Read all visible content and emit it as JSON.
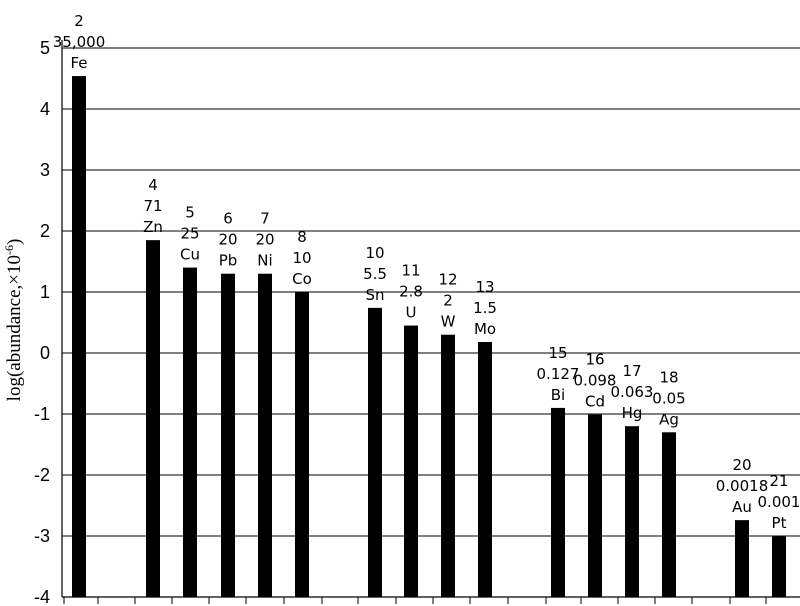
{
  "chart_data": {
    "type": "bar",
    "ylabel": "log(abundance,×10",
    "ylabel_exp": "-6",
    "ylabel_close": ")",
    "ylim": [
      -4,
      5
    ],
    "yticks": [
      "5",
      "4",
      "3",
      "2",
      "1",
      "0",
      "-1",
      "-2",
      "-3",
      "-4"
    ],
    "grid": true,
    "bars": [
      {
        "symbol": "Fe",
        "rank": "2",
        "abundance": "35,000",
        "value": 4.54
      },
      {
        "symbol": "Zn",
        "rank": "4",
        "abundance": "71",
        "value": 1.85
      },
      {
        "symbol": "Cu",
        "rank": "5",
        "abundance": "25",
        "value": 1.4
      },
      {
        "symbol": "Pb",
        "rank": "6",
        "abundance": "20",
        "value": 1.3
      },
      {
        "symbol": "Ni",
        "rank": "7",
        "abundance": "20",
        "value": 1.3
      },
      {
        "symbol": "Co",
        "rank": "8",
        "abundance": "10",
        "value": 1.0
      },
      {
        "symbol": "Sn",
        "rank": "10",
        "abundance": "5.5",
        "value": 0.74
      },
      {
        "symbol": "U",
        "rank": "11",
        "abundance": "2.8",
        "value": 0.45
      },
      {
        "symbol": "W",
        "rank": "12",
        "abundance": "2",
        "value": 0.3
      },
      {
        "symbol": "Mo",
        "rank": "13",
        "abundance": "1.5",
        "value": 0.18
      },
      {
        "symbol": "Bi",
        "rank": "15",
        "abundance": "0.127",
        "value": -0.9
      },
      {
        "symbol": "Cd",
        "rank": "16",
        "abundance": "0.098",
        "value": -1.01
      },
      {
        "symbol": "Hg",
        "rank": "17",
        "abundance": "0.063",
        "value": -1.2
      },
      {
        "symbol": "Ag",
        "rank": "18",
        "abundance": "0.05",
        "value": -1.3
      },
      {
        "symbol": "Au",
        "rank": "20",
        "abundance": "0.0018",
        "value": -2.74
      },
      {
        "symbol": "Pt",
        "rank": "21",
        "abundance": "0.001",
        "value": -3.0
      }
    ]
  }
}
